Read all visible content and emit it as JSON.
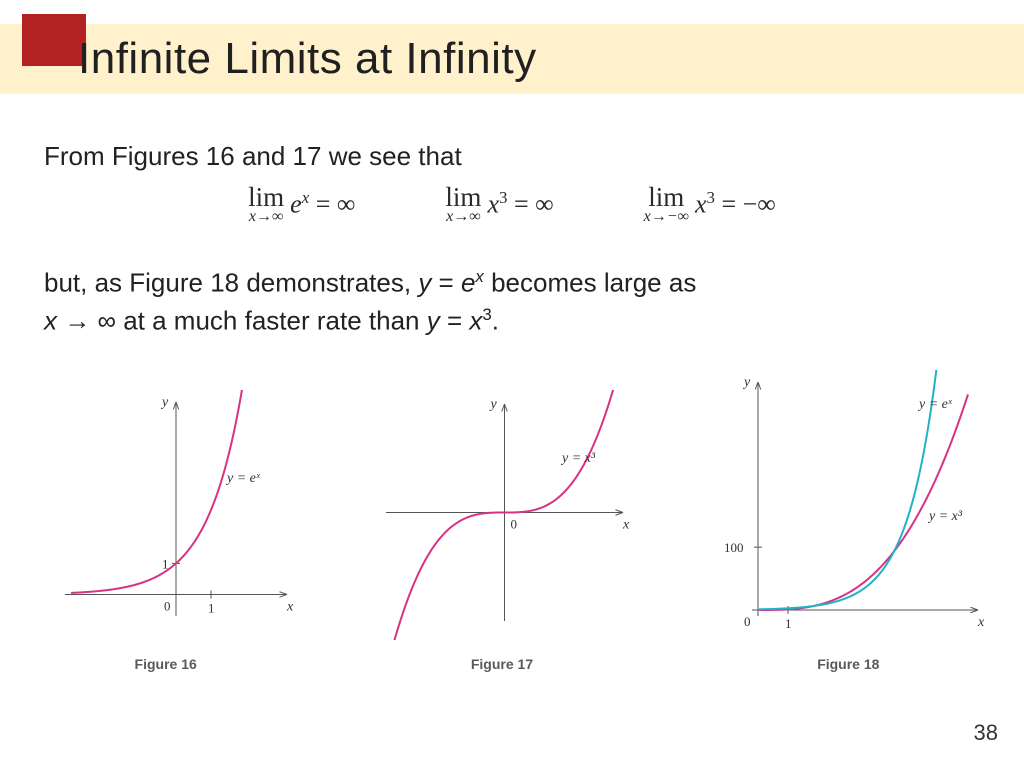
{
  "title_band_color": "#fff1cc",
  "title_box_color": "#b22222",
  "slide_title": "Infinite Limits at Infinity",
  "text": {
    "line1": "From Figures 16 and 17 we see that",
    "line2a": "but, as Figure 18 demonstrates, ",
    "line2b_eq_lhs": "y",
    "line2b_eq_eq": " = ",
    "line2b_eq_rhs_base": "e",
    "line2b_eq_rhs_sup": "x",
    "line2c": " becomes large as",
    "line3a_prefix": "x",
    "line3a_arrow": " → ∞ ",
    "line3a_rest": "at a much faster rate than ",
    "line3b_eq_lhs": "y",
    "line3b_eq_eq": " = ",
    "line3b_eq_rhs_base": "x",
    "line3b_eq_rhs_sup": "3",
    "line3b_period": "."
  },
  "equations": {
    "eq1": {
      "lim_label": "lim",
      "lim_sub": "x→∞",
      "body": "e",
      "body_sup": "x",
      "eq": " = ∞"
    },
    "eq2": {
      "lim_label": "lim",
      "lim_sub": "x→∞",
      "body": "x",
      "body_sup": "3",
      "eq": " = ∞"
    },
    "eq3": {
      "lim_label": "lim",
      "lim_sub": "x→−∞",
      "body": "x",
      "body_sup": "3",
      "eq": " = −∞"
    }
  },
  "figures": {
    "fig16": {
      "caption": "Figure 16",
      "curve_label": "y = eˣ",
      "curve_color": "#d63384",
      "axis_color": "#555555",
      "y_axis_label": "y",
      "x_axis_label": "x",
      "y_tick": "1",
      "x_tick": "1",
      "origin_label": "0",
      "xlim": [
        -3,
        3
      ],
      "ylim": [
        -0.5,
        6
      ],
      "label_fontsize": 14,
      "curve_width": 2
    },
    "fig17": {
      "caption": "Figure 17",
      "curve_label": "y = x³",
      "curve_color": "#d63384",
      "axis_color": "#555555",
      "y_axis_label": "y",
      "x_axis_label": "x",
      "origin_label": "0",
      "xlim": [
        -2.2,
        2.2
      ],
      "ylim": [
        -8,
        8
      ],
      "label_fontsize": 14,
      "curve_width": 2
    },
    "fig18": {
      "caption": "Figure 18",
      "curve1_label": "y = eˣ",
      "curve1_color": "#20b2c9",
      "curve2_label": "y = x³",
      "curve2_color": "#d63384",
      "axis_color": "#555555",
      "y_axis_label": "y",
      "x_axis_label": "x",
      "y_tick": "100",
      "x_tick": "1",
      "origin_label": "0",
      "xlim": [
        0,
        7
      ],
      "ylim": [
        0,
        350
      ],
      "label_fontsize": 14,
      "curve_width": 2
    }
  },
  "page_number": "38"
}
